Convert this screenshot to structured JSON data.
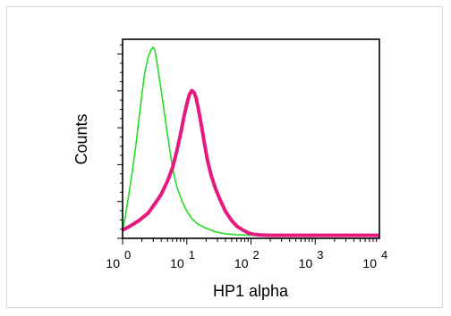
{
  "chart_data": {
    "type": "line",
    "title": "",
    "xlabel": "HP1 alpha",
    "ylabel": "Counts",
    "x_scale": "log",
    "xlim": [
      1,
      10000
    ],
    "ylim": [
      0,
      1
    ],
    "grid": false,
    "legend": "none",
    "x_ticks": [
      {
        "base": "10",
        "exp": "0",
        "value": 1
      },
      {
        "base": "10",
        "exp": "1",
        "value": 10
      },
      {
        "base": "10",
        "exp": "2",
        "value": 100
      },
      {
        "base": "10",
        "exp": "3",
        "value": 1000
      },
      {
        "base": "10",
        "exp": "4",
        "value": 10000
      }
    ],
    "series": [
      {
        "color": "#22dd22",
        "x": [
          1,
          1.1,
          1.25,
          1.4,
          1.6,
          1.8,
          2.0,
          2.2,
          2.5,
          2.8,
          3.0,
          3.2,
          3.5,
          3.8,
          4.2,
          4.7,
          5.3,
          6.0,
          7.0,
          8.5,
          10,
          12,
          15,
          20,
          28,
          40,
          60,
          100,
          10000
        ],
        "y": [
          0.03,
          0.1,
          0.22,
          0.33,
          0.47,
          0.62,
          0.75,
          0.86,
          0.95,
          0.99,
          1.0,
          0.98,
          0.9,
          0.82,
          0.72,
          0.6,
          0.48,
          0.36,
          0.26,
          0.18,
          0.13,
          0.09,
          0.06,
          0.04,
          0.02,
          0.01,
          0.005,
          0.002,
          0.002
        ]
      },
      {
        "color": "#e6197e",
        "x": [
          1,
          1.3,
          1.8,
          2.5,
          3.2,
          4.0,
          5.0,
          6.0,
          7.0,
          8.0,
          9.0,
          10,
          11,
          12,
          13,
          14,
          15,
          17,
          19,
          21,
          24,
          28,
          33,
          40,
          50,
          60,
          75,
          90,
          110,
          140,
          200,
          10000
        ],
        "y": [
          0.03,
          0.05,
          0.08,
          0.12,
          0.17,
          0.22,
          0.29,
          0.36,
          0.45,
          0.54,
          0.63,
          0.7,
          0.75,
          0.77,
          0.76,
          0.73,
          0.68,
          0.58,
          0.48,
          0.4,
          0.32,
          0.25,
          0.19,
          0.13,
          0.08,
          0.05,
          0.03,
          0.015,
          0.007,
          0.004,
          0.002,
          0.002
        ]
      }
    ]
  }
}
